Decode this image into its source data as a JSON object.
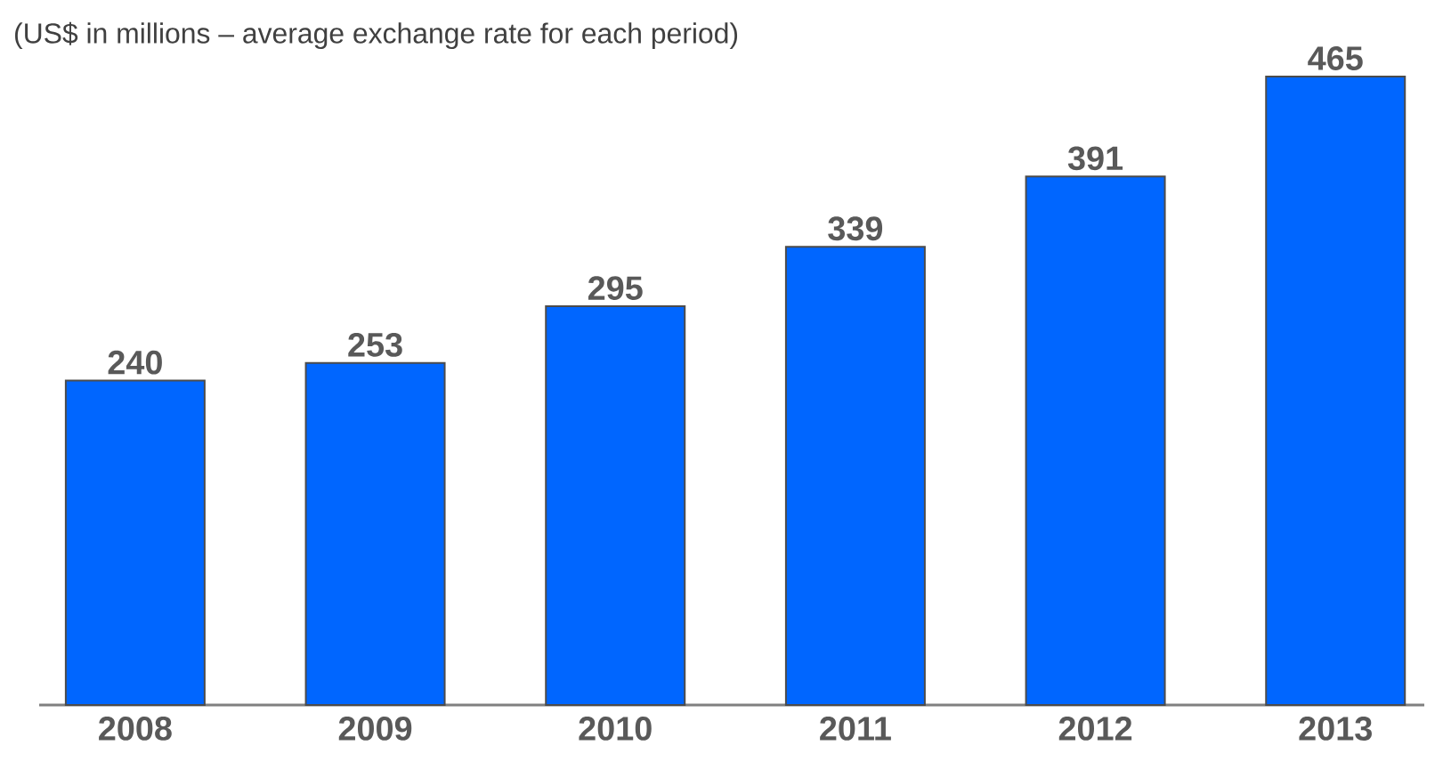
{
  "chart_data": {
    "type": "bar",
    "subtitle": "(US$ in millions – average exchange rate for each period)",
    "categories": [
      "2008",
      "2009",
      "2010",
      "2011",
      "2012",
      "2013"
    ],
    "values": [
      240,
      253,
      295,
      339,
      391,
      465
    ],
    "color": "#0066ff",
    "data_labels": true
  }
}
